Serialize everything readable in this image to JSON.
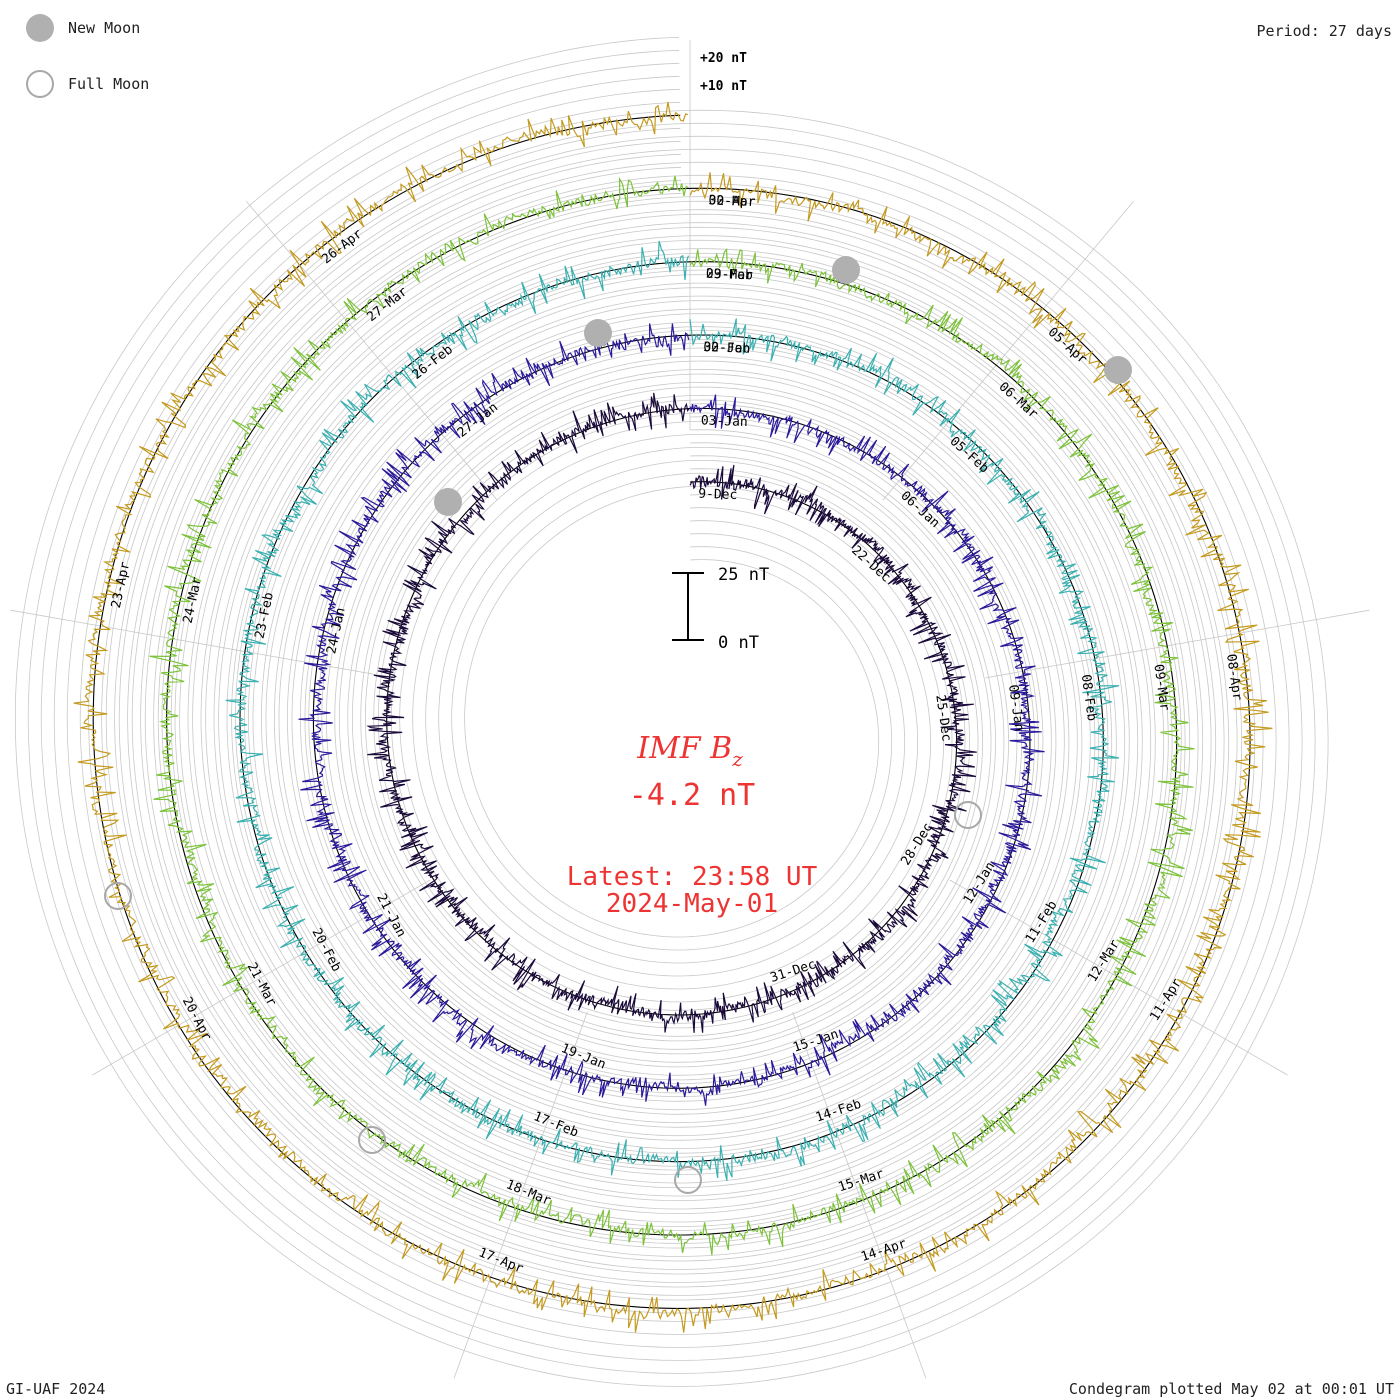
{
  "header": {
    "period_label": "Period: 27 days"
  },
  "legend": [
    {
      "label": "New Moon",
      "style": "filled",
      "color": "#b0b0b0"
    },
    {
      "label": "Full Moon",
      "style": "hollow",
      "color": "#a8a8a8"
    }
  ],
  "footer": {
    "credit": "GI-UAF 2024",
    "plotted": "Condegram plotted May 02 at 00:01 UT"
  },
  "center": {
    "quantity": "IMF B",
    "subscript": "z",
    "value": "-4.2 nT",
    "latest": "Latest: 23:58 UT",
    "date": "2024-May-01",
    "color": "#ee3333"
  },
  "scale_bar": {
    "top_label": "25 nT",
    "bottom_label": "0 nT"
  },
  "chart_data": {
    "type": "line",
    "title": "IMF Bz",
    "period_days": 27,
    "reference_labels": [
      "+20 nT",
      "+10 nT"
    ],
    "series": [
      {
        "color": "#1a0a3a",
        "date_labels": [
          "9-Dec",
          "22-Dec",
          "25-Dec",
          "28-Dec",
          "31-Dec"
        ]
      },
      {
        "color": "#2a1a9a",
        "date_labels": [
          "03-Jan",
          "06-Jan",
          "09-Jan",
          "12-Jan",
          "15-Jan",
          "19-Jan",
          "21-Jan",
          "24-Jan",
          "27-Jan",
          "30-Jan"
        ]
      },
      {
        "color": "#3ab0b0",
        "date_labels": [
          "02-Feb",
          "05-Feb",
          "08-Feb",
          "11-Feb",
          "14-Feb",
          "17-Feb",
          "20-Feb",
          "23-Feb",
          "26-Feb",
          "29-Feb"
        ]
      },
      {
        "color": "#7cc23a",
        "date_labels": [
          "03-Mar",
          "06-Mar",
          "09-Mar",
          "12-Mar",
          "15-Mar",
          "18-Mar",
          "21-Mar",
          "24-Mar",
          "27-Mar",
          "30-Mar"
        ]
      },
      {
        "color": "#c49a20",
        "date_labels": [
          "02-Apr",
          "05-Apr",
          "08-Apr",
          "11-Apr",
          "14-Apr",
          "17-Apr",
          "20-Apr",
          "23-Apr",
          "26-Apr"
        ]
      }
    ],
    "new_moons": [
      "11-Jan",
      "10-Feb",
      "10-Mar",
      "08-Apr"
    ],
    "full_moons": [
      "25-Dec",
      "25-Jan",
      "24-Feb",
      "25-Mar",
      "24-Apr"
    ],
    "latest_value_nT": -4.2
  }
}
